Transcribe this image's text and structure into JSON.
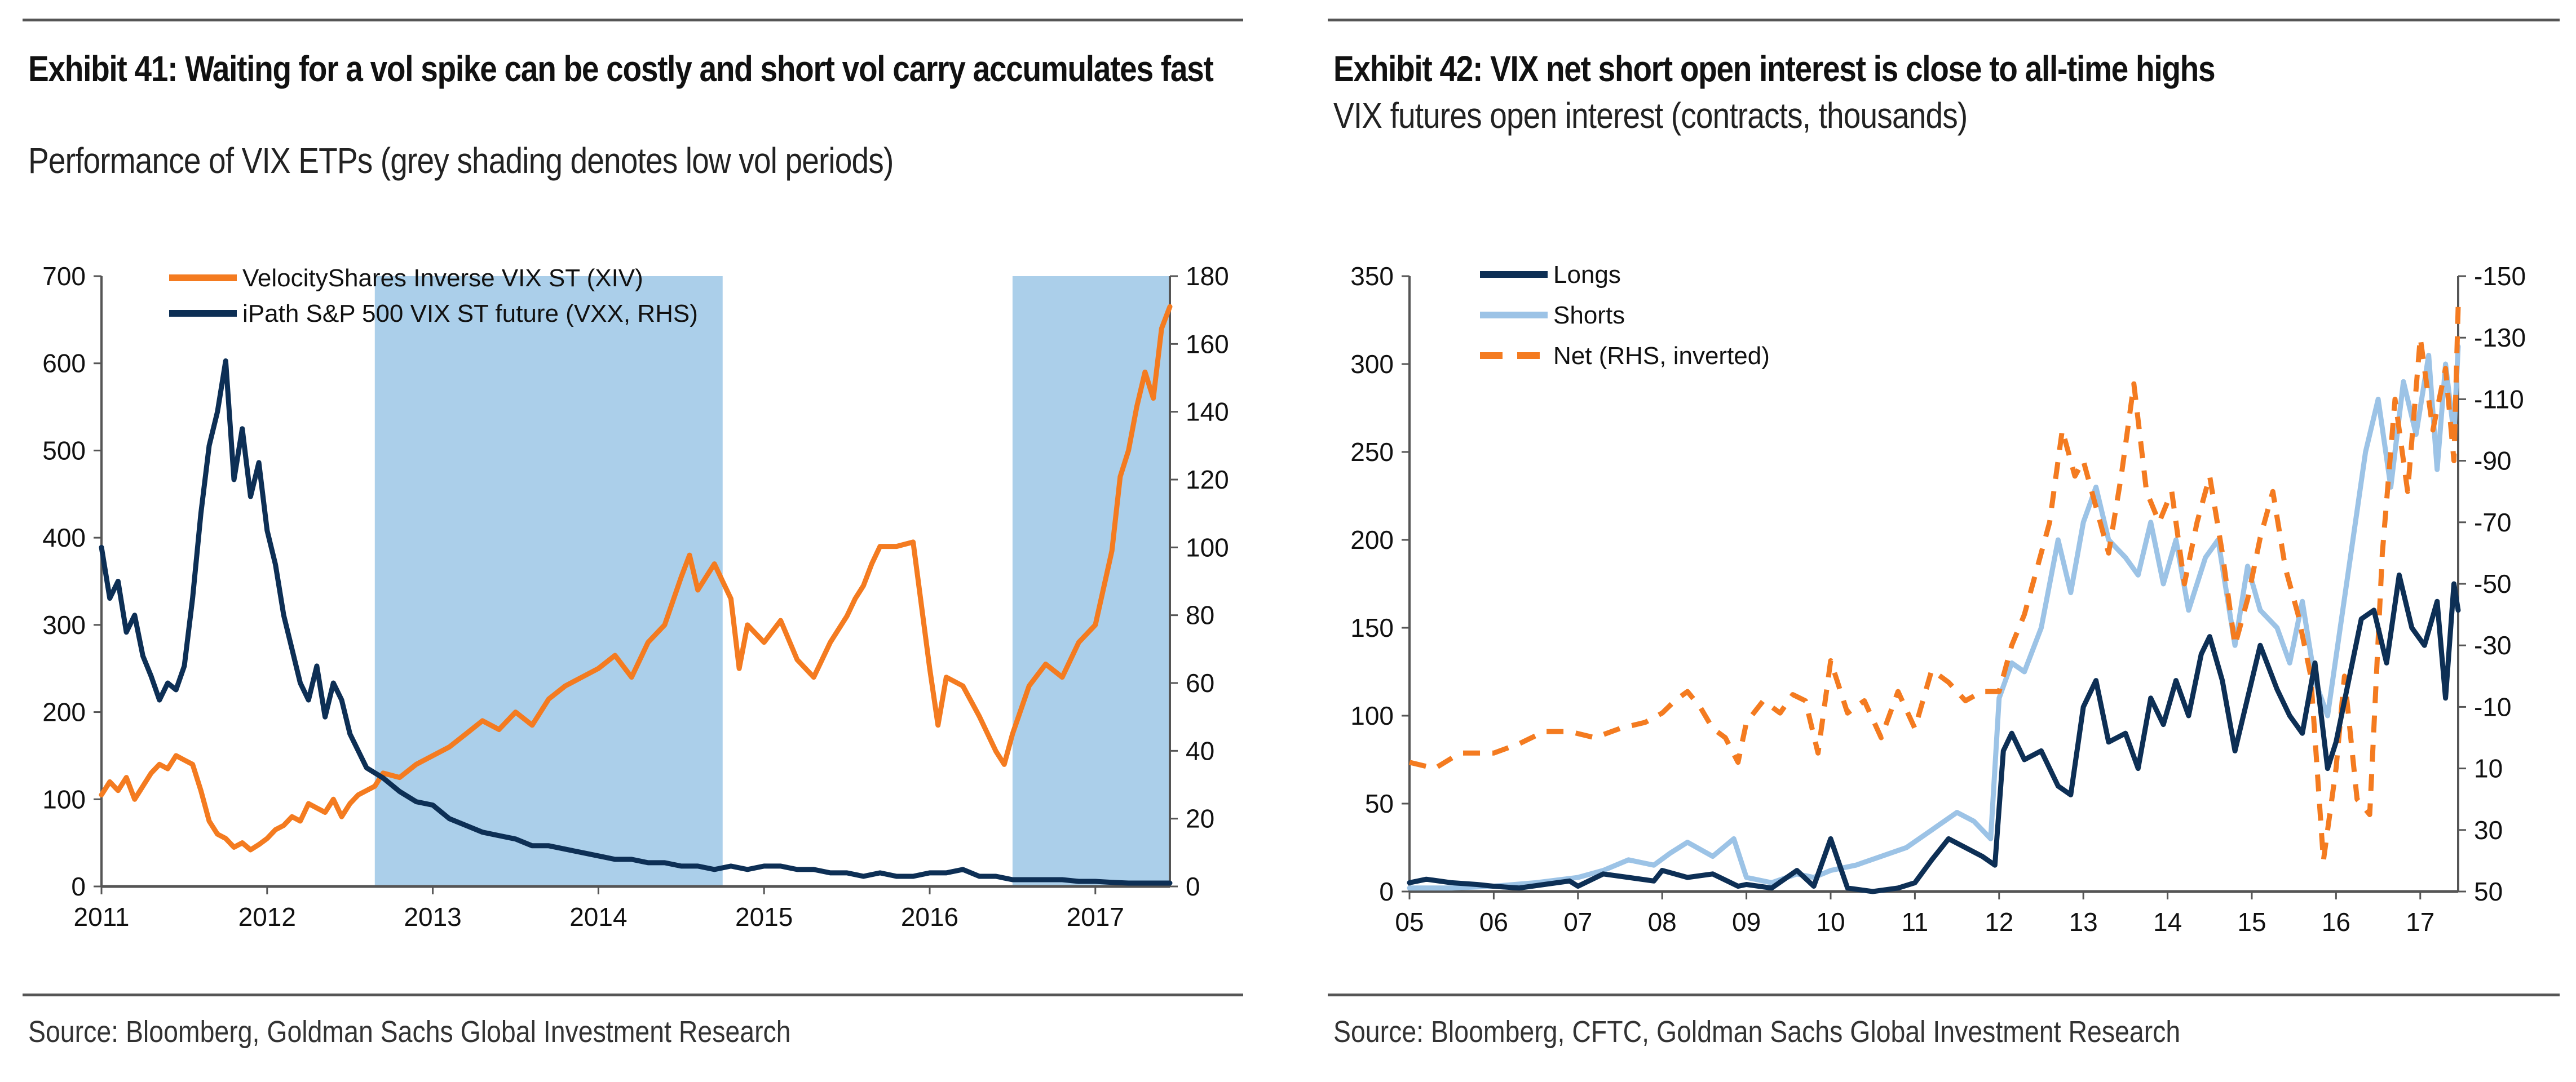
{
  "panels": {
    "left": {
      "title": "Exhibit 41: Waiting for a vol spike can be costly and short vol carry accumulates fast",
      "subtitle": "Performance of VIX ETPs (grey shading denotes low vol periods)",
      "source": "Source: Bloomberg, Goldman Sachs Global Investment Research"
    },
    "right": {
      "title": "Exhibit 42: VIX net short open interest is close to all-time highs",
      "subtitle": "VIX futures open interest (contracts, thousands)",
      "source": "Source: Bloomberg, CFTC, Goldman Sachs Global Investment Research"
    }
  },
  "colors": {
    "orange": "#f47b20",
    "navy": "#0d2f55",
    "light_blue": "#9cc3e6",
    "shade": "#abcfea",
    "axis": "#555555"
  },
  "chart_data": [
    {
      "type": "line",
      "title": "Exhibit 41: Waiting for a vol spike can be costly and short vol carry accumulates fast",
      "subtitle": "Performance of VIX ETPs (grey shading denotes low vol periods)",
      "xlabel": "",
      "ylabel": "",
      "x_ticks": [
        "2011",
        "2012",
        "2013",
        "2014",
        "2015",
        "2016",
        "2017"
      ],
      "xlim": [
        2011.0,
        2017.45
      ],
      "ylim_left": [
        0,
        700
      ],
      "yticks_left": [
        0,
        100,
        200,
        300,
        400,
        500,
        600,
        700
      ],
      "ylim_right": [
        0,
        180
      ],
      "yticks_right": [
        0,
        20,
        40,
        60,
        80,
        100,
        120,
        140,
        160,
        180
      ],
      "grid": false,
      "legend_position": "top-left",
      "shaded_periods": [
        {
          "label": "low vol period",
          "start": 2012.65,
          "end": 2014.75
        },
        {
          "label": "low vol period",
          "start": 2016.5,
          "end": 2017.45
        }
      ],
      "series": [
        {
          "name": "VelocityShares Inverse VIX ST (XIV)",
          "axis": "left",
          "color": "#f47b20",
          "x": [
            2011.0,
            2011.05,
            2011.1,
            2011.15,
            2011.2,
            2011.25,
            2011.3,
            2011.35,
            2011.4,
            2011.45,
            2011.5,
            2011.55,
            2011.6,
            2011.65,
            2011.7,
            2011.75,
            2011.8,
            2011.85,
            2011.9,
            2011.95,
            2012.0,
            2012.05,
            2012.1,
            2012.15,
            2012.2,
            2012.25,
            2012.3,
            2012.35,
            2012.4,
            2012.45,
            2012.5,
            2012.55,
            2012.6,
            2012.65,
            2012.7,
            2012.8,
            2012.9,
            2013.0,
            2013.1,
            2013.2,
            2013.3,
            2013.4,
            2013.5,
            2013.6,
            2013.7,
            2013.8,
            2013.9,
            2014.0,
            2014.1,
            2014.2,
            2014.3,
            2014.4,
            2014.5,
            2014.55,
            2014.6,
            2014.7,
            2014.75,
            2014.8,
            2014.85,
            2014.9,
            2015.0,
            2015.1,
            2015.2,
            2015.3,
            2015.4,
            2015.5,
            2015.55,
            2015.6,
            2015.65,
            2015.7,
            2015.8,
            2015.9,
            2016.0,
            2016.05,
            2016.1,
            2016.2,
            2016.3,
            2016.4,
            2016.45,
            2016.5,
            2016.6,
            2016.7,
            2016.8,
            2016.9,
            2017.0,
            2017.1,
            2017.15,
            2017.2,
            2017.25,
            2017.3,
            2017.35,
            2017.4,
            2017.45
          ],
          "values": [
            105,
            120,
            110,
            125,
            100,
            115,
            130,
            140,
            135,
            150,
            145,
            140,
            110,
            75,
            60,
            55,
            45,
            50,
            42,
            48,
            55,
            65,
            70,
            80,
            75,
            95,
            90,
            85,
            100,
            80,
            95,
            105,
            110,
            115,
            130,
            125,
            140,
            150,
            160,
            175,
            190,
            180,
            200,
            185,
            215,
            230,
            240,
            250,
            265,
            240,
            280,
            300,
            355,
            380,
            340,
            370,
            350,
            330,
            250,
            300,
            280,
            305,
            260,
            240,
            280,
            310,
            330,
            345,
            370,
            390,
            390,
            395,
            250,
            185,
            240,
            230,
            195,
            155,
            140,
            175,
            230,
            255,
            240,
            280,
            300,
            385,
            470,
            500,
            550,
            590,
            560,
            640,
            665
          ]
        },
        {
          "name": "iPath S&P 500 VIX ST future (VXX, RHS)",
          "axis": "right",
          "color": "#0d2f55",
          "x": [
            2011.0,
            2011.05,
            2011.1,
            2011.15,
            2011.2,
            2011.25,
            2011.3,
            2011.35,
            2011.4,
            2011.45,
            2011.5,
            2011.55,
            2011.6,
            2011.65,
            2011.7,
            2011.75,
            2011.8,
            2011.85,
            2011.9,
            2011.95,
            2012.0,
            2012.05,
            2012.1,
            2012.15,
            2012.2,
            2012.25,
            2012.3,
            2012.35,
            2012.4,
            2012.45,
            2012.5,
            2012.55,
            2012.6,
            2012.7,
            2012.8,
            2012.9,
            2013.0,
            2013.1,
            2013.2,
            2013.3,
            2013.4,
            2013.5,
            2013.6,
            2013.7,
            2013.8,
            2013.9,
            2014.0,
            2014.1,
            2014.2,
            2014.3,
            2014.4,
            2014.5,
            2014.6,
            2014.7,
            2014.8,
            2014.9,
            2015.0,
            2015.1,
            2015.2,
            2015.3,
            2015.4,
            2015.5,
            2015.6,
            2015.7,
            2015.8,
            2015.9,
            2016.0,
            2016.1,
            2016.2,
            2016.3,
            2016.4,
            2016.5,
            2016.6,
            2016.7,
            2016.8,
            2016.9,
            2017.0,
            2017.1,
            2017.2,
            2017.3,
            2017.45
          ],
          "values": [
            100,
            85,
            90,
            75,
            80,
            68,
            62,
            55,
            60,
            58,
            65,
            85,
            110,
            130,
            140,
            155,
            120,
            135,
            115,
            125,
            105,
            95,
            80,
            70,
            60,
            55,
            65,
            50,
            60,
            55,
            45,
            40,
            35,
            32,
            28,
            25,
            24,
            20,
            18,
            16,
            15,
            14,
            12,
            12,
            11,
            10,
            9,
            8,
            8,
            7,
            7,
            6,
            6,
            5,
            6,
            5,
            6,
            6,
            5,
            5,
            4,
            4,
            3,
            4,
            3,
            3,
            4,
            4,
            5,
            3,
            3,
            2,
            2,
            2,
            2,
            1.5,
            1.5,
            1.2,
            1,
            1,
            1
          ]
        }
      ]
    },
    {
      "type": "line",
      "title": "Exhibit 42: VIX net short open interest is close to all-time highs",
      "subtitle": "VIX futures open interest (contracts, thousands)",
      "xlabel": "",
      "ylabel": "",
      "x_ticks": [
        "05",
        "06",
        "07",
        "08",
        "09",
        "10",
        "11",
        "12",
        "13",
        "14",
        "15",
        "16",
        "17"
      ],
      "xlim": [
        2005.0,
        2017.45
      ],
      "ylim_left": [
        0,
        350
      ],
      "yticks_left": [
        0,
        50,
        100,
        150,
        200,
        250,
        300,
        350
      ],
      "ylim_right": [
        50,
        -150
      ],
      "yticks_right": [
        -150,
        -130,
        -110,
        -90,
        -70,
        -50,
        -30,
        -10,
        10,
        30,
        50
      ],
      "right_axis_inverted": true,
      "grid": false,
      "legend_position": "top-left",
      "series": [
        {
          "name": "Longs",
          "axis": "left",
          "color": "#0d2f55",
          "x": [
            2005.0,
            2005.2,
            2005.5,
            2005.8,
            2006.0,
            2006.3,
            2006.6,
            2006.9,
            2007.0,
            2007.3,
            2007.6,
            2007.9,
            2008.0,
            2008.3,
            2008.6,
            2008.9,
            2009.0,
            2009.3,
            2009.6,
            2009.8,
            2010.0,
            2010.2,
            2010.5,
            2010.8,
            2011.0,
            2011.2,
            2011.4,
            2011.6,
            2011.8,
            2011.95,
            2012.05,
            2012.15,
            2012.3,
            2012.5,
            2012.7,
            2012.85,
            2013.0,
            2013.15,
            2013.3,
            2013.5,
            2013.65,
            2013.8,
            2013.95,
            2014.1,
            2014.25,
            2014.4,
            2014.5,
            2014.65,
            2014.8,
            2014.95,
            2015.1,
            2015.3,
            2015.45,
            2015.6,
            2015.75,
            2015.9,
            2016.0,
            2016.15,
            2016.3,
            2016.45,
            2016.6,
            2016.75,
            2016.9,
            2017.05,
            2017.2,
            2017.3,
            2017.4,
            2017.45
          ],
          "values": [
            5,
            7,
            5,
            4,
            3,
            2,
            4,
            6,
            3,
            10,
            8,
            6,
            12,
            8,
            10,
            3,
            4,
            2,
            12,
            3,
            30,
            2,
            0,
            2,
            5,
            18,
            30,
            25,
            20,
            15,
            80,
            90,
            75,
            80,
            60,
            55,
            105,
            120,
            85,
            90,
            70,
            110,
            95,
            120,
            100,
            135,
            145,
            120,
            80,
            110,
            140,
            115,
            100,
            90,
            130,
            70,
            85,
            120,
            155,
            160,
            130,
            180,
            150,
            140,
            165,
            110,
            175,
            160
          ]
        },
        {
          "name": "Shorts",
          "axis": "left",
          "color": "#9cc3e6",
          "x": [
            2005.0,
            2005.5,
            2006.0,
            2006.5,
            2007.0,
            2007.3,
            2007.6,
            2007.9,
            2008.1,
            2008.3,
            2008.6,
            2008.85,
            2009.0,
            2009.3,
            2009.6,
            2009.8,
            2010.0,
            2010.3,
            2010.6,
            2010.9,
            2011.2,
            2011.5,
            2011.7,
            2011.9,
            2012.0,
            2012.15,
            2012.3,
            2012.5,
            2012.7,
            2012.85,
            2013.0,
            2013.15,
            2013.3,
            2013.5,
            2013.65,
            2013.8,
            2013.95,
            2014.1,
            2014.25,
            2014.45,
            2014.6,
            2014.8,
            2014.95,
            2015.1,
            2015.3,
            2015.45,
            2015.6,
            2015.75,
            2015.9,
            2016.05,
            2016.2,
            2016.35,
            2016.5,
            2016.65,
            2016.8,
            2016.95,
            2017.1,
            2017.2,
            2017.3,
            2017.4,
            2017.45
          ],
          "values": [
            2,
            2,
            3,
            5,
            8,
            12,
            18,
            15,
            22,
            28,
            20,
            30,
            8,
            5,
            10,
            8,
            12,
            15,
            20,
            25,
            35,
            45,
            40,
            30,
            110,
            130,
            125,
            150,
            200,
            170,
            210,
            230,
            200,
            190,
            180,
            210,
            175,
            200,
            160,
            190,
            200,
            140,
            185,
            160,
            150,
            130,
            165,
            120,
            100,
            150,
            200,
            250,
            280,
            230,
            290,
            260,
            305,
            240,
            300,
            260,
            310
          ]
        },
        {
          "name": "Net (RHS, inverted)",
          "axis": "right",
          "color": "#f47b20",
          "dashed": true,
          "x": [
            2005.0,
            2005.3,
            2005.6,
            2006.0,
            2006.3,
            2006.6,
            2006.9,
            2007.2,
            2007.5,
            2007.8,
            2008.0,
            2008.15,
            2008.3,
            2008.45,
            2008.6,
            2008.75,
            2008.9,
            2009.0,
            2009.2,
            2009.4,
            2009.55,
            2009.7,
            2009.85,
            2010.0,
            2010.2,
            2010.4,
            2010.6,
            2010.8,
            2011.0,
            2011.2,
            2011.4,
            2011.6,
            2011.8,
            2012.0,
            2012.15,
            2012.3,
            2012.45,
            2012.6,
            2012.75,
            2012.9,
            2013.0,
            2013.15,
            2013.3,
            2013.45,
            2013.6,
            2013.75,
            2013.9,
            2014.05,
            2014.2,
            2014.35,
            2014.5,
            2014.65,
            2014.8,
            2014.95,
            2015.1,
            2015.25,
            2015.4,
            2015.55,
            2015.7,
            2015.85,
            2016.0,
            2016.1,
            2016.25,
            2016.4,
            2016.55,
            2016.7,
            2016.85,
            2017.0,
            2017.15,
            2017.3,
            2017.4,
            2017.45
          ],
          "values": [
            8,
            10,
            5,
            5,
            2,
            -2,
            -2,
            0,
            -3,
            -5,
            -8,
            -12,
            -15,
            -10,
            -3,
            0,
            8,
            -5,
            -12,
            -8,
            -14,
            -12,
            5,
            -25,
            -8,
            -12,
            0,
            -15,
            -3,
            -22,
            -18,
            -12,
            -15,
            -15,
            -30,
            -40,
            -55,
            -70,
            -100,
            -85,
            -90,
            -75,
            -60,
            -85,
            -115,
            -80,
            -70,
            -80,
            -50,
            -70,
            -85,
            -60,
            -30,
            -45,
            -65,
            -80,
            -55,
            -40,
            -20,
            40,
            10,
            -20,
            20,
            25,
            -60,
            -110,
            -80,
            -130,
            -100,
            -120,
            -90,
            -140
          ]
        }
      ]
    }
  ]
}
